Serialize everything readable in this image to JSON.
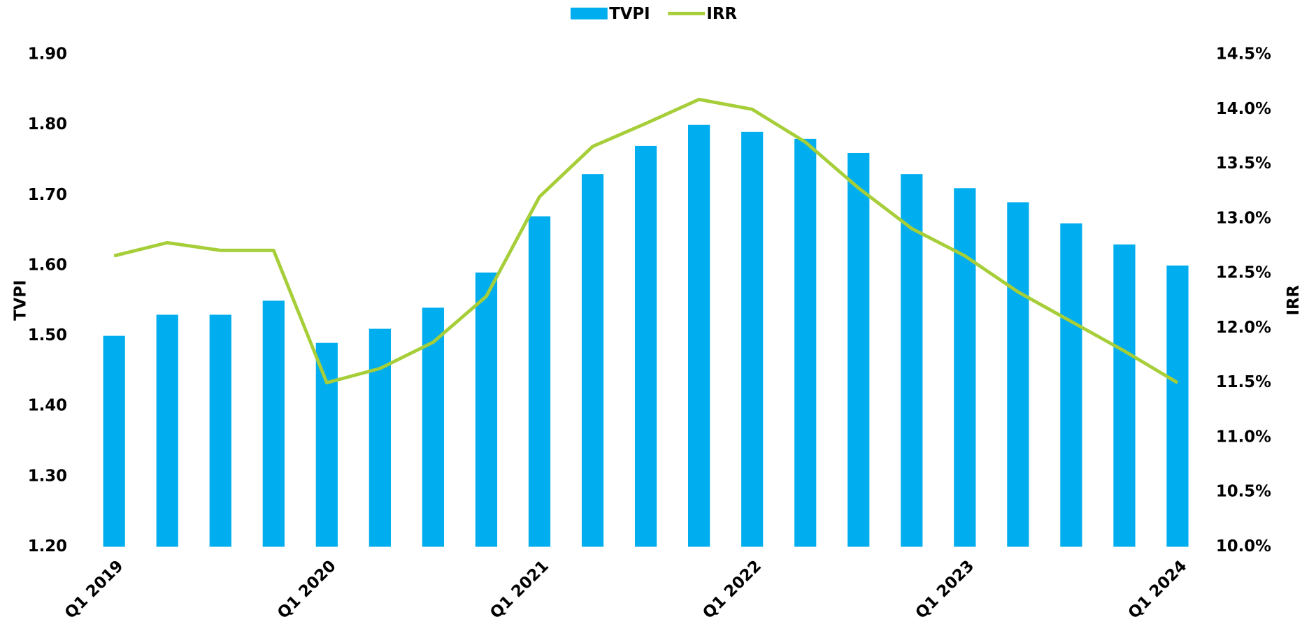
{
  "chart_data": {
    "type": "bar",
    "categories": [
      "Q1 2019",
      null,
      null,
      null,
      "Q1 2020",
      null,
      null,
      null,
      "Q1 2021",
      null,
      null,
      null,
      "Q1 2022",
      null,
      null,
      null,
      "Q1 2023",
      null,
      null,
      null,
      "Q1 2024"
    ],
    "series": [
      {
        "name": "TVPI",
        "type": "bar",
        "color": "#00adee",
        "axis": "y",
        "values": [
          1.5,
          1.53,
          1.53,
          1.55,
          1.49,
          1.51,
          1.54,
          1.59,
          1.67,
          1.73,
          1.77,
          1.8,
          1.79,
          1.78,
          1.76,
          1.73,
          1.71,
          1.69,
          1.66,
          1.63,
          1.6
        ]
      },
      {
        "name": "IRR",
        "type": "line",
        "color": "#a6ce39",
        "axis": "y2",
        "values": [
          12.66,
          12.78,
          12.71,
          12.71,
          11.5,
          11.63,
          11.87,
          12.29,
          13.2,
          13.66,
          13.87,
          14.09,
          14.0,
          13.7,
          13.28,
          12.91,
          12.66,
          12.33,
          12.06,
          11.79,
          11.5
        ]
      }
    ],
    "ylabel": "TVPI",
    "y2label": "IRR",
    "ylim": [
      1.2,
      1.9
    ],
    "yticks": [
      {
        "value": 1.2,
        "label": "1.20"
      },
      {
        "value": 1.3,
        "label": "1.30"
      },
      {
        "value": 1.4,
        "label": "1.40"
      },
      {
        "value": 1.5,
        "label": "1.50"
      },
      {
        "value": 1.6,
        "label": "1.60"
      },
      {
        "value": 1.7,
        "label": "1.70"
      },
      {
        "value": 1.8,
        "label": "1.80"
      },
      {
        "value": 1.9,
        "label": "1.90"
      }
    ],
    "y2lim": [
      10,
      14.5
    ],
    "y2ticks": [
      {
        "value": 10,
        "label": "10.0%"
      },
      {
        "value": 10.5,
        "label": "10.5%"
      },
      {
        "value": 11,
        "label": "11.0%"
      },
      {
        "value": 11.5,
        "label": "11.5%"
      },
      {
        "value": 12,
        "label": "12.0%"
      },
      {
        "value": 12.5,
        "label": "12.5%"
      },
      {
        "value": 13,
        "label": "13.0%"
      },
      {
        "value": 13.5,
        "label": "13.5%"
      },
      {
        "value": 14,
        "label": "14.0%"
      },
      {
        "value": 14.5,
        "label": "14.5%"
      }
    ],
    "grid": false,
    "legend": "top"
  }
}
